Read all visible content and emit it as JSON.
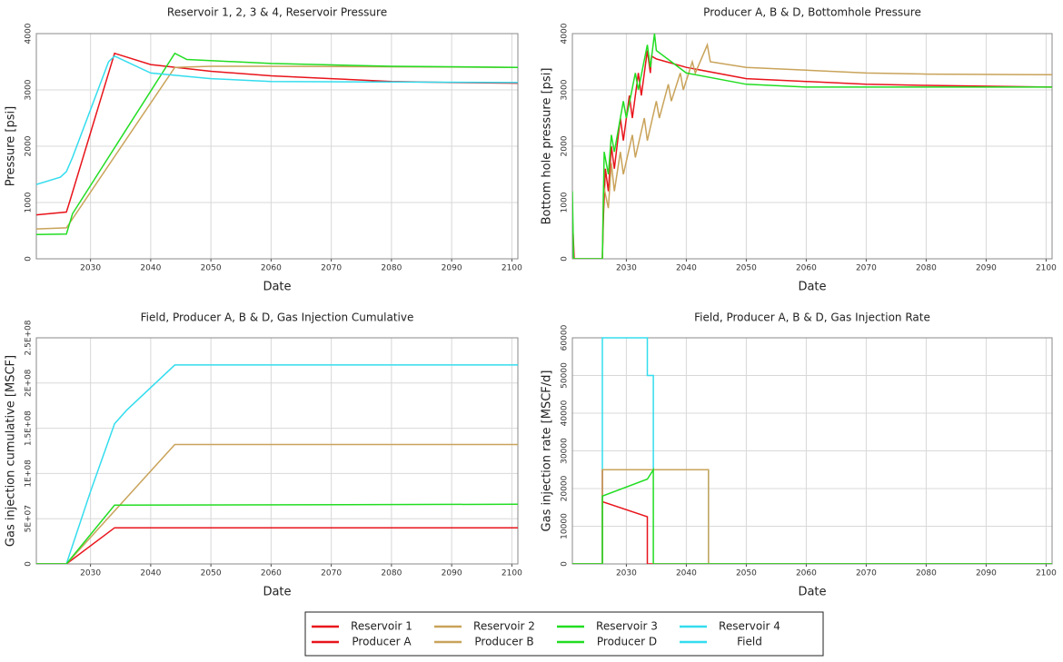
{
  "chart_data": [
    {
      "type": "line",
      "title": "Reservoir 1, 2, 3 & 4, Reservoir Pressure",
      "xlabel": "Date",
      "ylabel": "Pressure [psi]",
      "xlim": [
        2021,
        2101
      ],
      "xticks": [
        2030,
        2040,
        2050,
        2060,
        2070,
        2080,
        2090,
        2100
      ],
      "ylim": [
        0,
        4000
      ],
      "yticks": [
        0,
        1000,
        2000,
        3000,
        4000
      ],
      "grid": true,
      "series": [
        {
          "name": "Reservoir 1",
          "color": "#e8141b",
          "x": [
            2021,
            2026,
            2026.5,
            2034,
            2040,
            2050,
            2060,
            2070,
            2080,
            2090,
            2101
          ],
          "values": [
            780,
            830,
            1000,
            3650,
            3450,
            3330,
            3250,
            3200,
            3150,
            3130,
            3120
          ]
        },
        {
          "name": "Reservoir 2",
          "color": "#c9a35a",
          "x": [
            2021,
            2026,
            2044,
            2050,
            2060,
            2101
          ],
          "values": [
            530,
            550,
            3400,
            3420,
            3420,
            3400
          ]
        },
        {
          "name": "Reservoir 3",
          "color": "#22dd22",
          "x": [
            2021,
            2026,
            2027,
            2044,
            2046,
            2060,
            2080,
            2101
          ],
          "values": [
            430,
            440,
            800,
            3650,
            3540,
            3470,
            3420,
            3400
          ]
        },
        {
          "name": "Reservoir 4",
          "color": "#33ddee",
          "x": [
            2021,
            2025,
            2026,
            2027,
            2033,
            2034,
            2040,
            2050,
            2060,
            2101
          ],
          "values": [
            1320,
            1450,
            1550,
            1800,
            3500,
            3600,
            3300,
            3200,
            3150,
            3130
          ]
        }
      ]
    },
    {
      "type": "line",
      "title": "Producer A, B & D, Bottomhole Pressure",
      "xlabel": "Date",
      "ylabel": "Bottom hole pressure [psi]",
      "xlim": [
        2021,
        2101
      ],
      "xticks": [
        2030,
        2040,
        2050,
        2060,
        2070,
        2080,
        2090,
        2100
      ],
      "ylim": [
        0,
        4000
      ],
      "yticks": [
        0,
        1000,
        2000,
        3000,
        4000
      ],
      "grid": true,
      "series": [
        {
          "name": "Producer A",
          "color": "#e8141b",
          "x": [
            2021,
            2021.3,
            2026,
            2026.2,
            2026.5,
            2027,
            2027.5,
            2028,
            2029,
            2029.5,
            2030.5,
            2031,
            2032,
            2032.5,
            2033.5,
            2034,
            2034.2,
            2035,
            2040,
            2050,
            2060,
            2070,
            2080,
            2101
          ],
          "values": [
            750,
            0,
            0,
            800,
            1600,
            1200,
            2000,
            1600,
            2500,
            2100,
            2900,
            2500,
            3300,
            2900,
            3700,
            3300,
            3600,
            3550,
            3400,
            3200,
            3150,
            3100,
            3080,
            3050
          ]
        },
        {
          "name": "Producer B",
          "color": "#c9a35a",
          "x": [
            2021,
            2026,
            2026.2,
            2027,
            2027.5,
            2028,
            2029,
            2029.5,
            2031,
            2031.5,
            2033,
            2033.5,
            2035,
            2035.5,
            2037,
            2037.5,
            2039,
            2039.5,
            2041,
            2041.5,
            2043.5,
            2044,
            2050,
            2060,
            2070,
            2080,
            2101
          ],
          "values": [
            0,
            0,
            1300,
            900,
            1700,
            1200,
            1900,
            1500,
            2200,
            1800,
            2500,
            2100,
            2800,
            2500,
            3100,
            2800,
            3300,
            3000,
            3500,
            3300,
            3800,
            3500,
            3400,
            3350,
            3300,
            3280,
            3270
          ]
        },
        {
          "name": "Producer D",
          "color": "#22dd22",
          "x": [
            2021,
            2021.2,
            2026,
            2026.3,
            2027,
            2027.5,
            2028,
            2029.5,
            2030,
            2031.5,
            2032,
            2033.5,
            2034,
            2034.7,
            2035,
            2040,
            2050,
            2060,
            2101
          ],
          "values": [
            1200,
            0,
            0,
            1900,
            1500,
            2200,
            1900,
            2800,
            2500,
            3300,
            3000,
            3800,
            3400,
            4000,
            3700,
            3300,
            3100,
            3050,
            3050
          ]
        }
      ]
    },
    {
      "type": "line",
      "title": "Field, Producer A, B & D, Gas Injection Cumulative",
      "xlabel": "Date",
      "ylabel": "Gas injection cumulative [MSCF]",
      "xlim": [
        2021,
        2101
      ],
      "xticks": [
        2030,
        2040,
        2050,
        2060,
        2070,
        2080,
        2090,
        2100
      ],
      "ylim": [
        0,
        250000000
      ],
      "yticks": [
        0,
        {
          "value": 50000000,
          "label": "5E+07"
        },
        {
          "value": 100000000,
          "label": "1E+08"
        },
        {
          "value": 150000000,
          "label": "1.5E+08"
        },
        {
          "value": 200000000,
          "label": "2E+08"
        },
        {
          "value": 250000000,
          "label": "2.5E+08"
        }
      ],
      "grid": true,
      "series": [
        {
          "name": "Field",
          "color": "#33ddee",
          "x": [
            2021,
            2026,
            2026.5,
            2030,
            2034,
            2036,
            2044,
            2101
          ],
          "values": [
            0,
            0,
            10000000,
            80000000,
            155000000,
            170000000,
            220000000,
            220000000
          ]
        },
        {
          "name": "Producer A",
          "color": "#e8141b",
          "x": [
            2021,
            2026,
            2034,
            2101
          ],
          "values": [
            0,
            0,
            40000000,
            40000000
          ]
        },
        {
          "name": "Producer B",
          "color": "#c9a35a",
          "x": [
            2021,
            2026,
            2044,
            2101
          ],
          "values": [
            0,
            0,
            132000000,
            132000000
          ]
        },
        {
          "name": "Producer D",
          "color": "#22dd22",
          "x": [
            2021,
            2026,
            2034,
            2101
          ],
          "values": [
            0,
            0,
            65000000,
            66000000
          ]
        }
      ]
    },
    {
      "type": "line",
      "title": "Field, Producer A, B & D, Gas Injection Rate",
      "xlabel": "Date",
      "ylabel": "Gas injection rate [MSCF/d]",
      "xlim": [
        2021,
        2101
      ],
      "xticks": [
        2030,
        2040,
        2050,
        2060,
        2070,
        2080,
        2090,
        2100
      ],
      "ylim": [
        0,
        60000
      ],
      "yticks": [
        0,
        10000,
        20000,
        30000,
        40000,
        50000,
        60000
      ],
      "grid": true,
      "series": [
        {
          "name": "Field",
          "color": "#33ddee",
          "x": [
            2021,
            2026,
            2026,
            2033.5,
            2033.5,
            2034.5,
            2034.5,
            2043.7,
            2043.7,
            2101
          ],
          "values": [
            0,
            0,
            60000,
            60000,
            50000,
            50000,
            25000,
            25000,
            0,
            0
          ]
        },
        {
          "name": "Producer A",
          "color": "#e8141b",
          "x": [
            2021,
            2026,
            2026,
            2026,
            2033.5,
            2033.5,
            2101
          ],
          "values": [
            0,
            0,
            25000,
            16500,
            12500,
            0,
            0
          ]
        },
        {
          "name": "Producer B",
          "color": "#c9a35a",
          "x": [
            2021,
            2026,
            2026,
            2043.7,
            2043.7,
            2101
          ],
          "values": [
            0,
            0,
            25000,
            25000,
            0,
            0
          ]
        },
        {
          "name": "Producer D",
          "color": "#22dd22",
          "x": [
            2021,
            2026,
            2026,
            2033.5,
            2034.5,
            2034.5,
            2101
          ],
          "values": [
            0,
            0,
            18000,
            22500,
            25000,
            0,
            0
          ]
        }
      ]
    }
  ]
}
